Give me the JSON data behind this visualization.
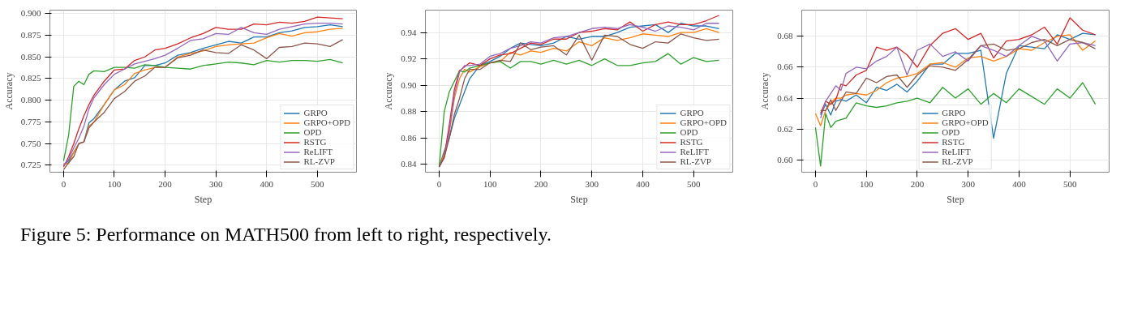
{
  "chart_data": [
    {
      "type": "line",
      "xlabel": "Step",
      "ylabel": "Accuracy",
      "x": [
        0,
        10,
        20,
        30,
        40,
        50,
        60,
        80,
        100,
        120,
        140,
        160,
        180,
        200,
        225,
        250,
        275,
        300,
        325,
        350,
        375,
        400,
        425,
        450,
        475,
        500,
        525,
        550
      ],
      "xlim": [
        -27,
        577
      ],
      "xticks": [
        0,
        100,
        200,
        300,
        400,
        500
      ],
      "ylim": [
        0.717,
        0.904
      ],
      "yticks": [
        {
          "value": 0.725,
          "label": "0.725"
        },
        {
          "value": 0.75,
          "label": "0.750"
        },
        {
          "value": 0.775,
          "label": "0.775"
        },
        {
          "value": 0.8,
          "label": "0.800"
        },
        {
          "value": 0.825,
          "label": "0.825"
        },
        {
          "value": 0.85,
          "label": "0.850"
        },
        {
          "value": 0.875,
          "label": "0.875"
        },
        {
          "value": 0.9,
          "label": "0.900"
        }
      ],
      "grid": true,
      "legend": "bottom right",
      "series": [
        {
          "name": "GRPO",
          "color": "#1f77b4",
          "values": [
            0.725,
            0.73,
            0.74,
            0.75,
            0.752,
            0.774,
            0.779,
            0.795,
            0.812,
            0.822,
            0.826,
            0.84,
            0.84,
            0.843,
            0.852,
            0.855,
            0.86,
            0.864,
            0.868,
            0.866,
            0.873,
            0.873,
            0.878,
            0.88,
            0.884,
            0.885,
            0.887,
            0.885
          ]
        },
        {
          "name": "GRPO+OPD",
          "color": "#ff7f0e",
          "values": [
            0.727,
            0.727,
            0.74,
            0.75,
            0.752,
            0.77,
            0.775,
            0.795,
            0.812,
            0.818,
            0.831,
            0.835,
            0.838,
            0.838,
            0.85,
            0.854,
            0.857,
            0.862,
            0.864,
            0.865,
            0.866,
            0.872,
            0.877,
            0.874,
            0.878,
            0.879,
            0.882,
            0.883
          ]
        },
        {
          "name": "OPD",
          "color": "#2ca02c",
          "values": [
            0.73,
            0.76,
            0.816,
            0.822,
            0.818,
            0.83,
            0.834,
            0.833,
            0.838,
            0.838,
            0.837,
            0.841,
            0.84,
            0.838,
            0.837,
            0.836,
            0.84,
            0.842,
            0.844,
            0.843,
            0.841,
            0.846,
            0.844,
            0.846,
            0.846,
            0.845,
            0.847,
            0.843
          ]
        },
        {
          "name": "RSTG",
          "color": "#d62728",
          "values": [
            0.723,
            0.735,
            0.75,
            0.767,
            0.782,
            0.795,
            0.806,
            0.822,
            0.835,
            0.836,
            0.846,
            0.85,
            0.858,
            0.86,
            0.865,
            0.872,
            0.877,
            0.884,
            0.882,
            0.882,
            0.888,
            0.887,
            0.89,
            0.889,
            0.891,
            0.896,
            0.895,
            0.894
          ]
        },
        {
          "name": "ReLIFT",
          "color": "#9467bd",
          "values": [
            0.725,
            0.732,
            0.745,
            0.756,
            0.77,
            0.79,
            0.803,
            0.818,
            0.83,
            0.836,
            0.842,
            0.845,
            0.848,
            0.852,
            0.86,
            0.869,
            0.871,
            0.877,
            0.876,
            0.884,
            0.878,
            0.876,
            0.882,
            0.885,
            0.888,
            0.889,
            0.889,
            0.888
          ]
        },
        {
          "name": "RL-ZVP",
          "color": "#8c564b",
          "values": [
            0.72,
            0.728,
            0.735,
            0.75,
            0.752,
            0.768,
            0.775,
            0.786,
            0.802,
            0.81,
            0.822,
            0.828,
            0.838,
            0.838,
            0.849,
            0.852,
            0.858,
            0.855,
            0.854,
            0.864,
            0.858,
            0.848,
            0.861,
            0.862,
            0.866,
            0.865,
            0.862,
            0.87
          ]
        }
      ]
    },
    {
      "type": "line",
      "xlabel": "Step",
      "ylabel": "Accuracy",
      "x": [
        0,
        10,
        20,
        30,
        40,
        50,
        60,
        80,
        100,
        120,
        140,
        160,
        180,
        200,
        225,
        250,
        275,
        300,
        325,
        350,
        375,
        400,
        425,
        450,
        475,
        500,
        525,
        550
      ],
      "xlim": [
        -27,
        577
      ],
      "xticks": [
        0,
        100,
        200,
        300,
        400,
        500
      ],
      "ylim": [
        0.834,
        0.957
      ],
      "yticks": [
        {
          "value": 0.84,
          "label": "0.84"
        },
        {
          "value": 0.86,
          "label": "0.86"
        },
        {
          "value": 0.88,
          "label": "0.88"
        },
        {
          "value": 0.9,
          "label": "0.90"
        },
        {
          "value": 0.92,
          "label": "0.92"
        },
        {
          "value": 0.94,
          "label": "0.94"
        }
      ],
      "grid": true,
      "legend": "bottom right",
      "series": [
        {
          "name": "GRPO",
          "color": "#1f77b4",
          "values": [
            0.838,
            0.85,
            0.86,
            0.875,
            0.885,
            0.895,
            0.905,
            0.915,
            0.918,
            0.922,
            0.928,
            0.932,
            0.931,
            0.93,
            0.932,
            0.937,
            0.935,
            0.937,
            0.937,
            0.94,
            0.944,
            0.945,
            0.946,
            0.94,
            0.947,
            0.945,
            0.945,
            0.943
          ]
        },
        {
          "name": "GRPO+OPD",
          "color": "#ff7f0e",
          "values": [
            0.838,
            0.848,
            0.865,
            0.89,
            0.905,
            0.912,
            0.91,
            0.914,
            0.917,
            0.918,
            0.925,
            0.923,
            0.926,
            0.925,
            0.928,
            0.926,
            0.933,
            0.93,
            0.936,
            0.934,
            0.936,
            0.939,
            0.938,
            0.937,
            0.94,
            0.94,
            0.943,
            0.94
          ]
        },
        {
          "name": "OPD",
          "color": "#2ca02c",
          "values": [
            0.838,
            0.88,
            0.895,
            0.903,
            0.911,
            0.91,
            0.913,
            0.915,
            0.917,
            0.918,
            0.913,
            0.918,
            0.918,
            0.916,
            0.919,
            0.916,
            0.919,
            0.915,
            0.92,
            0.915,
            0.915,
            0.917,
            0.918,
            0.924,
            0.916,
            0.921,
            0.918,
            0.919
          ]
        },
        {
          "name": "RSTG",
          "color": "#d62728",
          "values": [
            0.838,
            0.846,
            0.87,
            0.897,
            0.911,
            0.914,
            0.917,
            0.915,
            0.92,
            0.923,
            0.924,
            0.928,
            0.932,
            0.931,
            0.935,
            0.935,
            0.94,
            0.941,
            0.943,
            0.942,
            0.948,
            0.941,
            0.946,
            0.948,
            0.946,
            0.946,
            0.949,
            0.953
          ]
        },
        {
          "name": "ReLIFT",
          "color": "#9467bd",
          "values": [
            0.838,
            0.845,
            0.865,
            0.893,
            0.91,
            0.915,
            0.915,
            0.916,
            0.922,
            0.924,
            0.928,
            0.93,
            0.933,
            0.932,
            0.936,
            0.937,
            0.94,
            0.943,
            0.944,
            0.943,
            0.946,
            0.944,
            0.941,
            0.945,
            0.944,
            0.942,
            0.947,
            0.947
          ]
        },
        {
          "name": "RL-ZVP",
          "color": "#8c564b",
          "values": [
            0.838,
            0.845,
            0.86,
            0.878,
            0.89,
            0.905,
            0.912,
            0.912,
            0.917,
            0.919,
            0.918,
            0.932,
            0.927,
            0.929,
            0.93,
            0.923,
            0.938,
            0.919,
            0.938,
            0.937,
            0.931,
            0.928,
            0.933,
            0.932,
            0.939,
            0.936,
            0.934,
            0.935
          ]
        }
      ]
    },
    {
      "type": "line",
      "xlabel": "Step",
      "ylabel": "Accuracy",
      "x": [
        0,
        10,
        20,
        30,
        40,
        50,
        60,
        80,
        100,
        120,
        140,
        160,
        180,
        200,
        225,
        250,
        275,
        300,
        325,
        350,
        375,
        400,
        425,
        450,
        475,
        500,
        525,
        550
      ],
      "xlim": [
        -27,
        577
      ],
      "xticks": [
        0,
        100,
        200,
        300,
        400,
        500
      ],
      "ylim": [
        0.592,
        0.697
      ],
      "yticks": [
        {
          "value": 0.6,
          "label": "0.60"
        },
        {
          "value": 0.62,
          "label": "0.62"
        },
        {
          "value": 0.64,
          "label": "0.64"
        },
        {
          "value": 0.66,
          "label": "0.66"
        },
        {
          "value": 0.68,
          "label": "0.68"
        }
      ],
      "grid": true,
      "legend": "bottom",
      "annotations": [
        "Figure 5: Performance on MATH500 from left to right, respectively."
      ],
      "series": [
        {
          "name": "GRPO",
          "color": "#1f77b4",
          "values": [
            null,
            0.629,
            0.636,
            0.629,
            0.638,
            0.639,
            0.638,
            0.642,
            0.637,
            0.647,
            0.645,
            0.649,
            0.644,
            0.651,
            0.662,
            0.662,
            0.669,
            0.669,
            0.671,
            0.614,
            0.656,
            0.674,
            0.673,
            0.672,
            0.681,
            0.678,
            0.682,
            0.681
          ]
        },
        {
          "name": "GRPO+OPD",
          "color": "#ff7f0e",
          "values": [
            0.63,
            0.622,
            0.632,
            0.637,
            0.64,
            0.64,
            0.642,
            0.643,
            0.642,
            0.645,
            0.65,
            0.653,
            0.654,
            0.656,
            0.662,
            0.663,
            0.66,
            0.666,
            0.667,
            0.664,
            0.667,
            0.672,
            0.671,
            0.676,
            0.68,
            0.681,
            0.671,
            0.677
          ]
        },
        {
          "name": "OPD",
          "color": "#2ca02c",
          "values": [
            0.621,
            0.596,
            0.63,
            0.621,
            0.625,
            0.626,
            0.627,
            0.637,
            0.635,
            0.634,
            0.635,
            0.637,
            0.638,
            0.64,
            0.637,
            0.647,
            0.64,
            0.646,
            0.636,
            0.643,
            0.637,
            0.646,
            0.641,
            0.636,
            0.646,
            0.64,
            0.65,
            0.636
          ]
        },
        {
          "name": "RSTG",
          "color": "#d62728",
          "values": [
            null,
            0.63,
            0.638,
            0.636,
            0.639,
            0.649,
            0.648,
            0.655,
            0.658,
            0.673,
            0.671,
            0.673,
            0.668,
            0.66,
            0.674,
            0.682,
            0.685,
            0.678,
            0.682,
            0.666,
            0.677,
            0.678,
            0.681,
            0.686,
            0.675,
            0.692,
            0.684,
            0.681
          ]
        },
        {
          "name": "ReLIFT",
          "color": "#9467bd",
          "values": [
            null,
            0.627,
            0.638,
            0.643,
            0.648,
            0.645,
            0.656,
            0.66,
            0.659,
            0.664,
            0.667,
            0.673,
            0.655,
            0.671,
            0.675,
            0.667,
            0.67,
            0.664,
            0.674,
            0.671,
            0.667,
            0.674,
            0.68,
            0.677,
            0.664,
            0.675,
            0.676,
            0.674
          ]
        },
        {
          "name": "RL-ZVP",
          "color": "#8c564b",
          "values": [
            null,
            0.632,
            0.632,
            0.639,
            0.632,
            0.638,
            0.644,
            0.643,
            0.653,
            0.65,
            0.654,
            0.655,
            0.647,
            0.655,
            0.661,
            0.66,
            0.658,
            0.665,
            0.674,
            0.675,
            0.671,
            0.672,
            0.676,
            0.678,
            0.674,
            0.678,
            0.676,
            0.672
          ]
        }
      ]
    }
  ]
}
